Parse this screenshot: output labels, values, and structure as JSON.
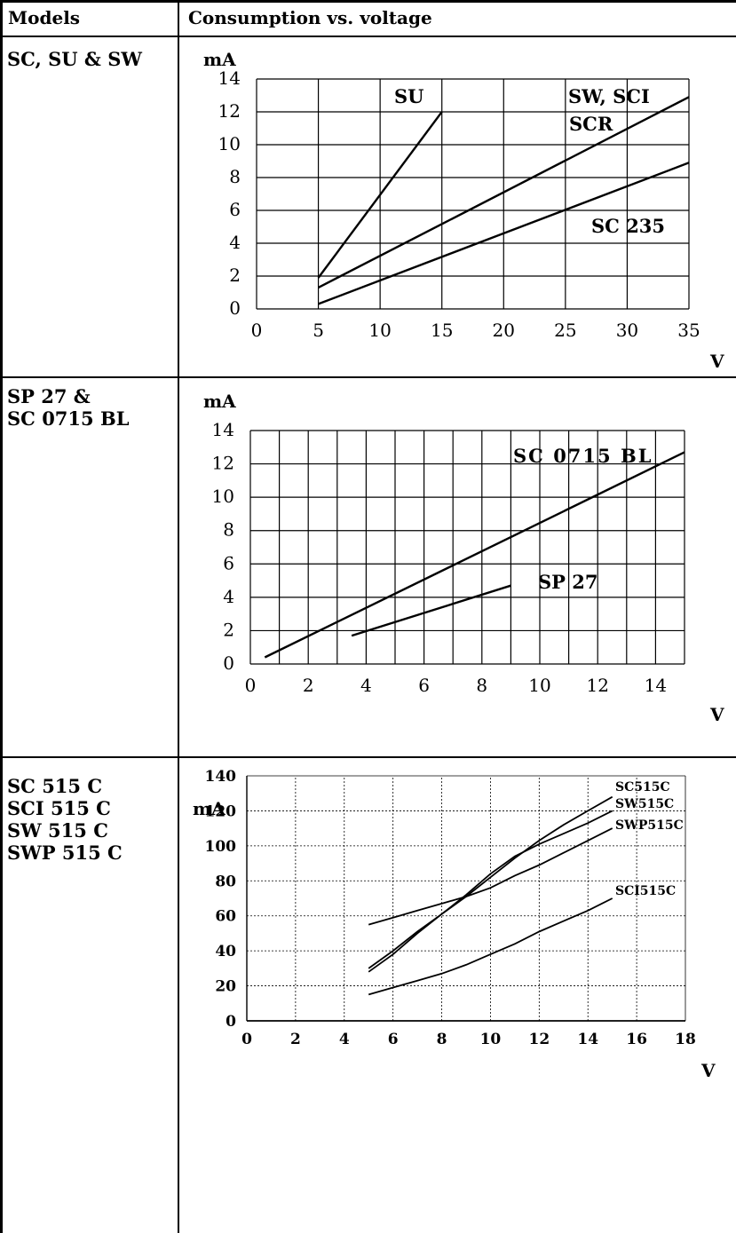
{
  "header": {
    "col1": "Models",
    "col2": "Consumption vs. voltage"
  },
  "rows": [
    {
      "models": [
        "SC, SU & SW"
      ]
    },
    {
      "models": [
        "SP 27 &",
        "SC 0715 BL"
      ]
    },
    {
      "models": [
        "SC 515 C",
        "SCI 515 C",
        "SW 515 C",
        "SWP 515 C"
      ]
    }
  ],
  "chart_data": [
    {
      "type": "line",
      "ylabel": "mA",
      "xlabel": "V",
      "xlim": [
        0,
        35
      ],
      "ylim": [
        0,
        14
      ],
      "xticks": [
        0,
        5,
        10,
        15,
        20,
        25,
        30,
        35
      ],
      "yticks": [
        0,
        2,
        4,
        6,
        8,
        10,
        12,
        14
      ],
      "grid": true,
      "series": [
        {
          "name": "SU",
          "x": [
            5,
            15
          ],
          "y": [
            1.9,
            12.0
          ]
        },
        {
          "name": "SW, SCI SCR",
          "x": [
            5,
            35
          ],
          "y": [
            1.3,
            12.9
          ]
        },
        {
          "name": "SC 235",
          "x": [
            5,
            35
          ],
          "y": [
            0.3,
            8.9
          ]
        }
      ],
      "annotations": [
        "SU",
        "SW, SCI",
        "SCR",
        "SC 235"
      ]
    },
    {
      "type": "line",
      "ylabel": "mA",
      "xlabel": "V",
      "xlim": [
        0,
        15
      ],
      "ylim": [
        0,
        14
      ],
      "xticks": [
        0,
        2,
        4,
        6,
        8,
        10,
        12,
        14
      ],
      "yticks": [
        0,
        2,
        4,
        6,
        8,
        10,
        12,
        14
      ],
      "grid": true,
      "series": [
        {
          "name": "SC 0715 BL",
          "x": [
            0.5,
            15
          ],
          "y": [
            0.4,
            12.7
          ]
        },
        {
          "name": "SP 27",
          "x": [
            3.5,
            9
          ],
          "y": [
            1.7,
            4.7
          ]
        }
      ],
      "annotations": [
        "SC 0715 BL",
        "SP 27"
      ]
    },
    {
      "type": "line",
      "ylabel": "mA",
      "xlabel": "V",
      "xlim": [
        0,
        18
      ],
      "ylim": [
        0,
        140
      ],
      "xticks": [
        0,
        2,
        4,
        6,
        8,
        10,
        12,
        14,
        16,
        18
      ],
      "yticks": [
        0,
        20,
        40,
        60,
        80,
        100,
        120,
        140
      ],
      "grid": true,
      "series": [
        {
          "name": "SC515C",
          "x": [
            5,
            6,
            7,
            8,
            9,
            10,
            11,
            12,
            13,
            14,
            15
          ],
          "y": [
            28,
            38,
            50,
            61,
            71,
            82,
            93,
            103,
            112,
            120,
            128
          ]
        },
        {
          "name": "SW515C",
          "x": [
            5,
            6,
            7,
            8,
            9,
            10,
            11,
            12,
            13,
            14,
            15
          ],
          "y": [
            30,
            40,
            51,
            61,
            72,
            84,
            94,
            101,
            107,
            113,
            120
          ]
        },
        {
          "name": "SWP515C",
          "x": [
            5,
            6,
            7,
            8,
            9,
            10,
            11,
            12,
            13,
            14,
            15
          ],
          "y": [
            55,
            59,
            63,
            67,
            71,
            76,
            83,
            89,
            96,
            103,
            110
          ]
        },
        {
          "name": "SCI515C",
          "x": [
            5,
            6,
            7,
            8,
            9,
            10,
            11,
            12,
            13,
            14,
            15
          ],
          "y": [
            15,
            19,
            23,
            27,
            32,
            38,
            44,
            51,
            57,
            63,
            70
          ]
        }
      ],
      "annotations": [
        "SC515C",
        "SW515C",
        "SWP515C",
        "SCI515C"
      ]
    }
  ]
}
